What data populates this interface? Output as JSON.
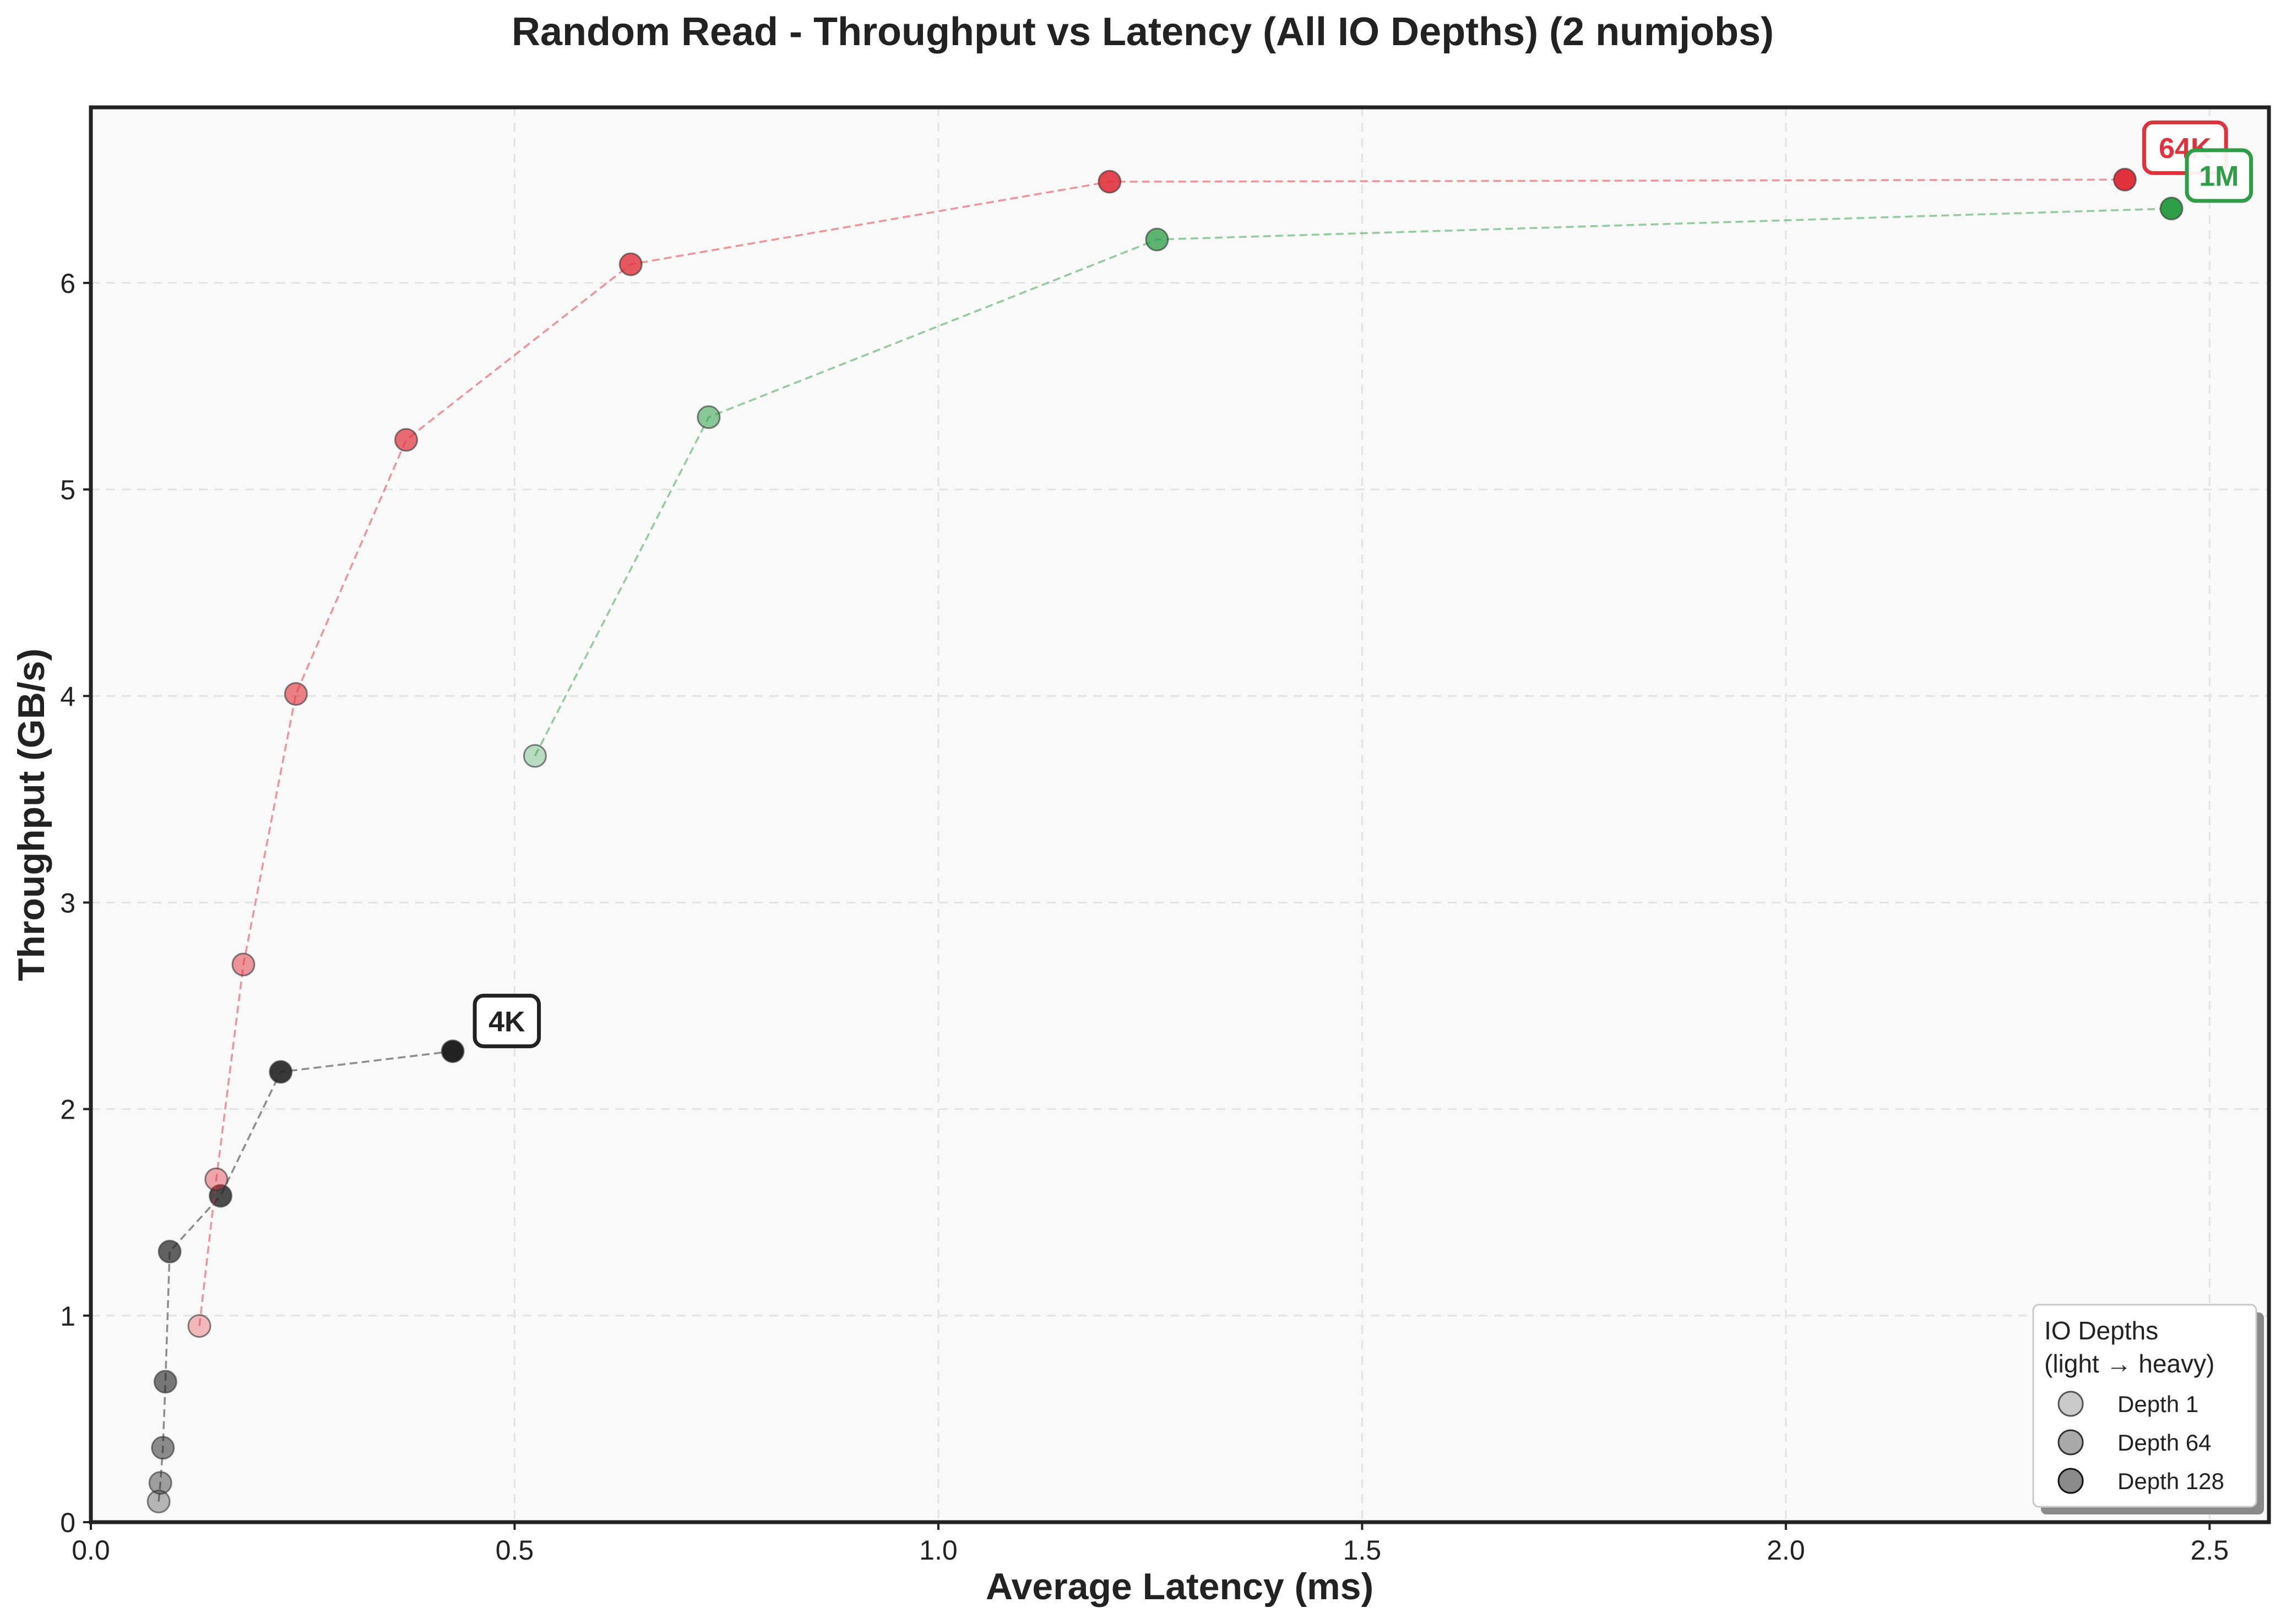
{
  "chart_data": {
    "type": "scatter",
    "title": "Random Read - Throughput vs Latency (All IO Depths) (2 numjobs)",
    "xlabel": "Average Latency (ms)",
    "ylabel": "Throughput (GB/s)",
    "xlim": [
      0.0,
      2.57
    ],
    "ylim": [
      0,
      6.85
    ],
    "xticks": [
      "0.0",
      "0.5",
      "1.0",
      "1.5",
      "2.0",
      "2.5"
    ],
    "yticks": [
      "0",
      "1",
      "2",
      "3",
      "4",
      "5",
      "6"
    ],
    "grid": true,
    "legend": {
      "title_line1": "IO Depths",
      "title_line2": "(light → heavy)",
      "placement": "lower-right",
      "entries": [
        "Depth 1",
        "Depth 64",
        "Depth 128"
      ]
    },
    "series": [
      {
        "name": "4K",
        "color": "#222222",
        "x": [
          0.08,
          0.082,
          0.085,
          0.088,
          0.093,
          0.153,
          0.224,
          0.427
        ],
        "y": [
          0.1,
          0.19,
          0.36,
          0.68,
          1.31,
          1.58,
          2.18,
          2.28
        ]
      },
      {
        "name": "64K",
        "color": "#e0323c",
        "x": [
          0.128,
          0.148,
          0.18,
          0.242,
          0.372,
          0.637,
          1.202,
          2.4
        ],
        "y": [
          0.95,
          1.66,
          2.7,
          4.01,
          5.24,
          6.09,
          6.49,
          6.5
        ]
      },
      {
        "name": "1M",
        "color": "#2e9e46",
        "x": [
          0.524,
          0.729,
          1.258,
          2.455
        ],
        "y": [
          3.71,
          5.35,
          6.21,
          6.36
        ]
      }
    ],
    "annotations": [
      {
        "text": "4K",
        "series": "4K",
        "color": "#222222"
      },
      {
        "text": "64K",
        "series": "64K",
        "color": "#e0323c"
      },
      {
        "text": "1M",
        "series": "1M",
        "color": "#2e9e46"
      }
    ]
  }
}
